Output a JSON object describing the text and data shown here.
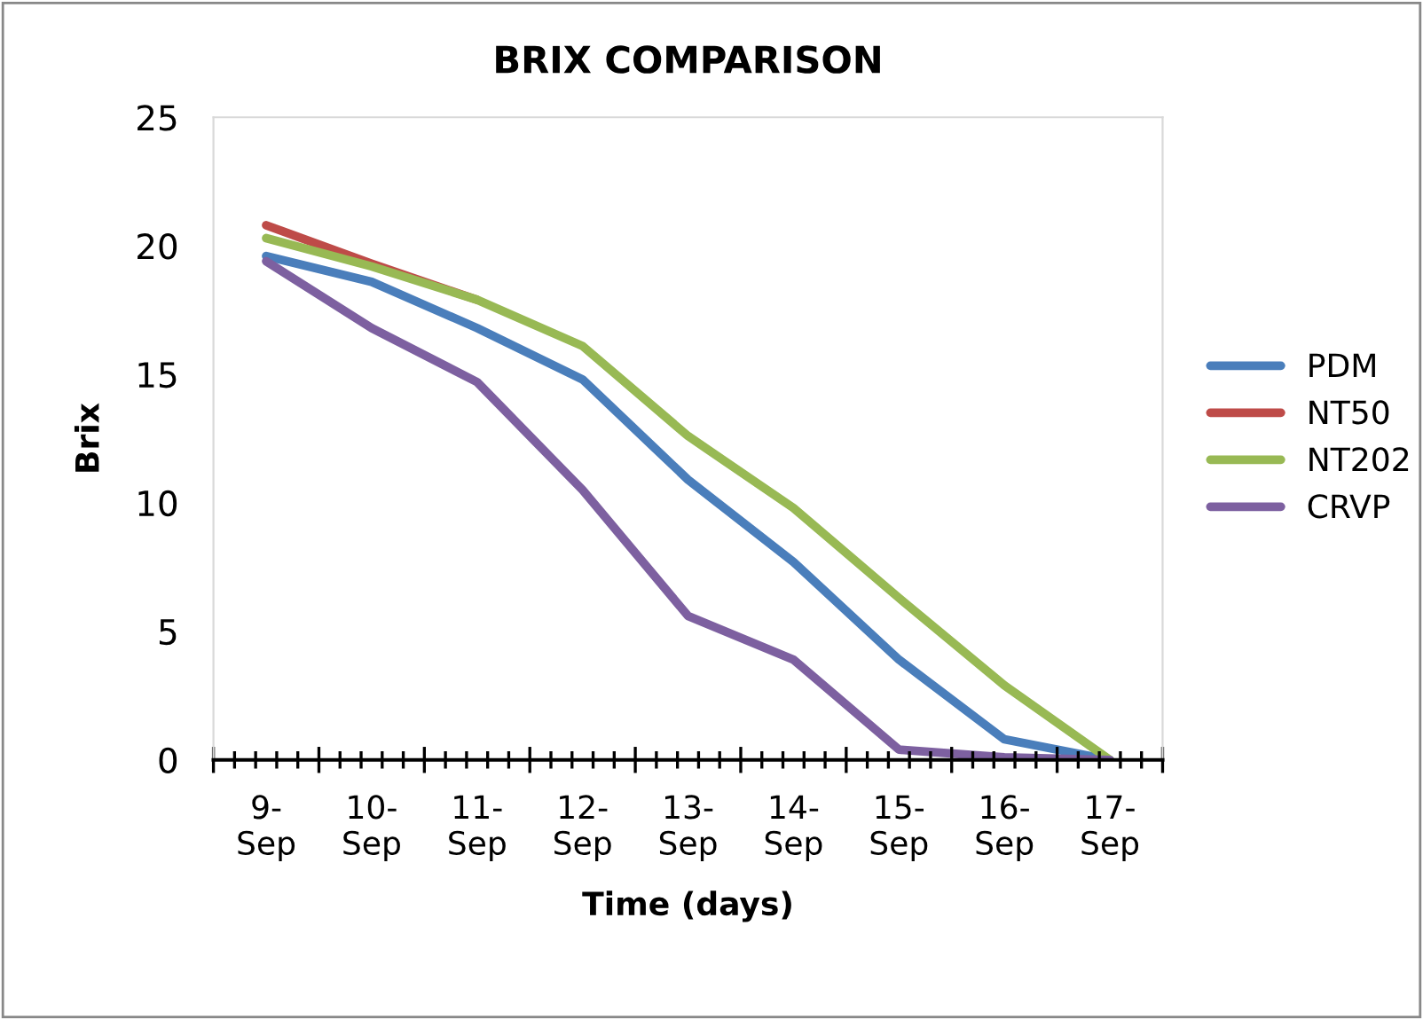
{
  "chart_data": {
    "type": "line",
    "title": "BRIX COMPARISON",
    "xlabel": "Time (days)",
    "ylabel": "Brix",
    "categories": [
      "9-Sep",
      "10-Sep",
      "11-Sep",
      "12-Sep",
      "13-Sep",
      "14-Sep",
      "15-Sep",
      "16-Sep",
      "17-Sep"
    ],
    "series": [
      {
        "name": "PDM",
        "color": "#4a7ebb",
        "values": [
          19.6,
          18.6,
          16.8,
          14.8,
          10.9,
          7.7,
          3.9,
          0.8,
          0
        ]
      },
      {
        "name": "NT50",
        "color": "#be4b48",
        "values": [
          20.8,
          19.3,
          17.9,
          null,
          null,
          null,
          null,
          null,
          null
        ]
      },
      {
        "name": "NT202",
        "color": "#98b954",
        "values": [
          20.3,
          19.2,
          17.9,
          16.1,
          12.6,
          9.8,
          6.3,
          2.9,
          0
        ]
      },
      {
        "name": "CRVP",
        "color": "#7d60a0",
        "values": [
          19.4,
          16.8,
          14.7,
          10.5,
          5.6,
          3.9,
          0.4,
          0.1,
          0
        ]
      }
    ],
    "ylim": [
      0,
      25
    ],
    "yticks": [
      0,
      5,
      10,
      15,
      20,
      25
    ],
    "grid": false,
    "legend": "right",
    "marker": "none",
    "line_style": "solid"
  }
}
